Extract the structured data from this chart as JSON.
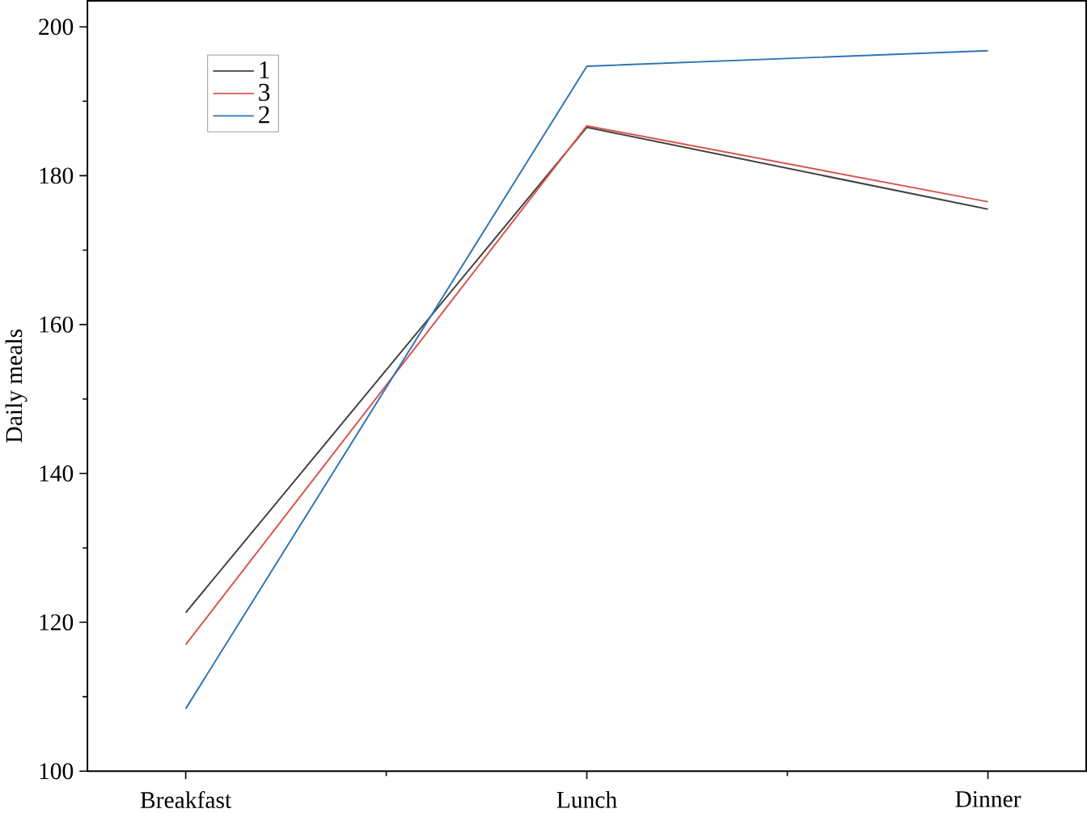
{
  "chart_data": {
    "type": "line",
    "ylabel": "Daily meals",
    "categories": [
      "Breakfast",
      "Lunch",
      "Dinner"
    ],
    "series": [
      {
        "name": "1",
        "color": "#404040",
        "values": [
          121.3,
          186.5,
          175.5
        ]
      },
      {
        "name": "3",
        "color": "#d9534f",
        "values": [
          117.0,
          186.7,
          176.5
        ]
      },
      {
        "name": "2",
        "color": "#2e75b6",
        "values": [
          108.4,
          194.7,
          196.8
        ]
      }
    ],
    "ylim": [
      100,
      203.5
    ],
    "yticks": [
      100,
      120,
      140,
      160,
      180,
      200
    ],
    "legend": "top left",
    "grid": false,
    "marker": "none",
    "line_style": "solid"
  }
}
